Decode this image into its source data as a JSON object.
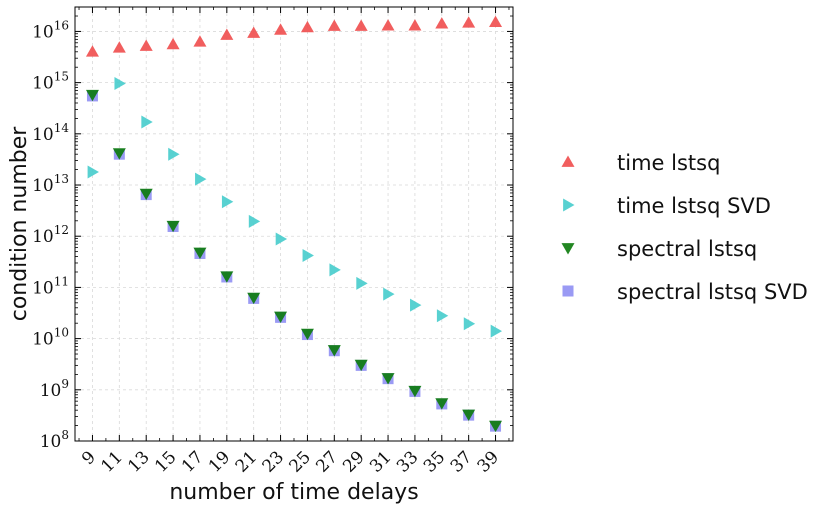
{
  "chart_data": {
    "type": "scatter",
    "title": "",
    "xlabel": "number of time delays",
    "ylabel": "condition number",
    "yscale": "log",
    "ylim": [
      100000000.0,
      3e+16
    ],
    "xlim": [
      7.7,
      40.3
    ],
    "y_tick_base": "10",
    "y_tick_exponents": [
      "8",
      "9",
      "10",
      "11",
      "12",
      "13",
      "14",
      "15",
      "16"
    ],
    "x_ticks": [
      "9",
      "11",
      "13",
      "15",
      "17",
      "19",
      "21",
      "23",
      "25",
      "27",
      "29",
      "31",
      "33",
      "35",
      "37",
      "39"
    ],
    "x_tick_rotation_deg": 45,
    "grid": true,
    "legend_position": "right, outside plot",
    "x": [
      9,
      11,
      13,
      15,
      17,
      19,
      21,
      23,
      25,
      27,
      29,
      31,
      33,
      35,
      37,
      39
    ],
    "series": [
      {
        "name": "time lstsq",
        "marker": "triangle-up",
        "color": "#f04c4c",
        "values": [
          4000000000000000.0,
          4800000000000000.0,
          5200000000000000.0,
          5600000000000000.0,
          6300000000000000.0,
          8500000000000000.0,
          9300000000000000.0,
          1.07e+16,
          1.2e+16,
          1.28e+16,
          1.28e+16,
          1.3e+16,
          1.3e+16,
          1.42e+16,
          1.48e+16,
          1.52e+16
        ]
      },
      {
        "name": "time lstsq SVD",
        "marker": "triangle-right",
        "color": "#46cccc",
        "values": [
          18000000000000.0,
          960000000000000.0,
          170000000000000.0,
          40000000000000.0,
          13000000000000.0,
          4700000000000.0,
          1950000000000.0,
          880000000000.0,
          420000000000.0,
          220000000000.0,
          120000000000.0,
          74000000000.0,
          45000000000.0,
          28000000000.0,
          19500000000.0,
          14000000000.0
        ]
      },
      {
        "name": "spectral lstsq",
        "marker": "triangle-down",
        "color": "#0a7a0a",
        "values": [
          580000000000000.0,
          42000000000000.0,
          6800000000000.0,
          1600000000000.0,
          480000000000.0,
          165000000000.0,
          63000000000.0,
          27000000000.0,
          12500000000.0,
          6000000000.0,
          3100000000.0,
          1700000000.0,
          960000000.0,
          550000000.0,
          330000000.0,
          200000000.0
        ]
      },
      {
        "name": "spectral lstsq SVD",
        "marker": "square",
        "color": "#8f8ff3",
        "values": [
          550000000000000.0,
          40000000000000.0,
          6500000000000.0,
          1550000000000.0,
          460000000000.0,
          160000000000.0,
          61000000000.0,
          26000000000.0,
          12000000000.0,
          5800000000.0,
          3000000000.0,
          1650000000.0,
          930000000.0,
          530000000.0,
          320000000.0,
          195000000.0
        ]
      }
    ]
  }
}
